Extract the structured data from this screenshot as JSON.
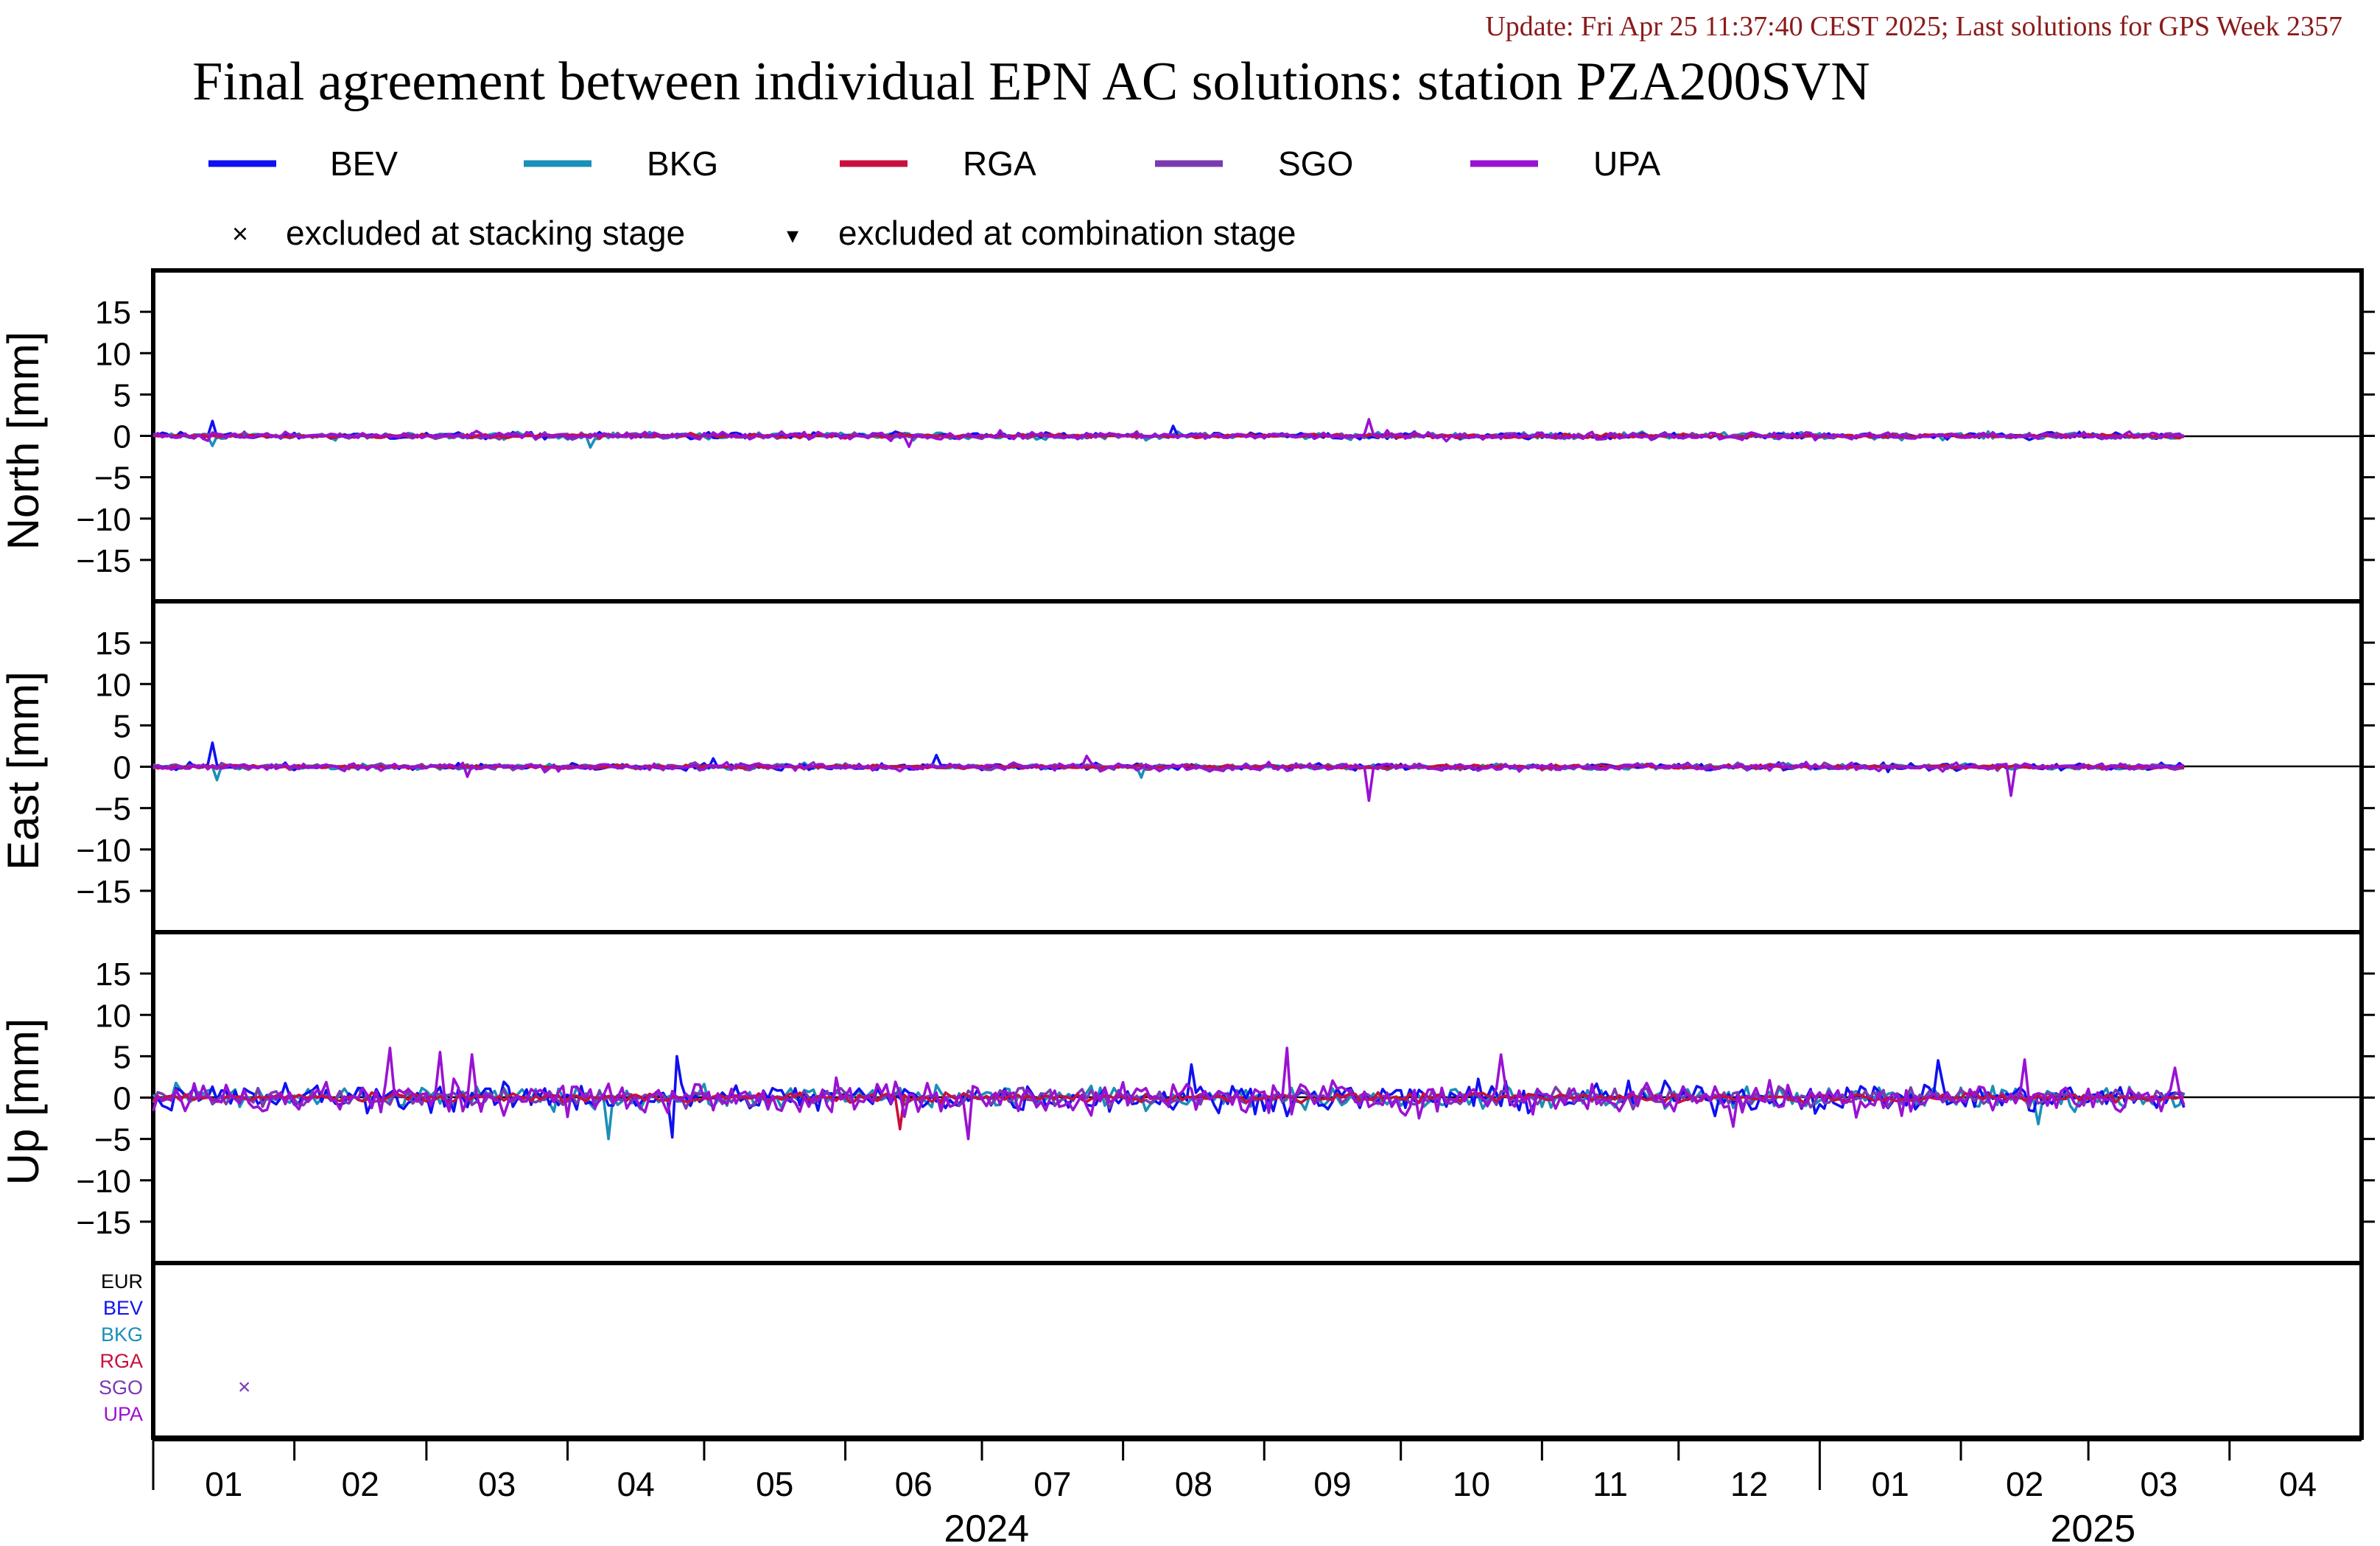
{
  "page": {
    "update_line": "Update: Fri Apr 25 11:37:40 CEST 2025; Last solutions for GPS Week 2357",
    "title": "Final agreement between individual EPN AC solutions: station PZA200SVN"
  },
  "colors": {
    "BEV": "#1010f0",
    "BKG": "#1a8fb8",
    "RGA": "#c8103c",
    "SGO": "#7a3ab0",
    "UPA": "#9a12d2",
    "EUR": "#000000",
    "update_text": "#8b1a1a"
  },
  "legend": {
    "series": [
      "BEV",
      "BKG",
      "RGA",
      "SGO",
      "UPA"
    ],
    "markers": [
      {
        "symbol": "×",
        "label": "excluded at stacking stage"
      },
      {
        "symbol": "▾",
        "label": "excluded at combination stage"
      }
    ]
  },
  "chart_data": {
    "type": "line",
    "x_unit": "date",
    "x_range": [
      "2024-01-01",
      "2025-04-30"
    ],
    "month_ticks": [
      "01",
      "02",
      "03",
      "04",
      "05",
      "06",
      "07",
      "08",
      "09",
      "10",
      "11",
      "12",
      "01",
      "02",
      "03",
      "04"
    ],
    "years": [
      "2024",
      "2025"
    ],
    "last_date": "2025-03-22",
    "panels": [
      {
        "id": "north",
        "ylabel": "North [mm]",
        "ylim": [
          -20,
          20
        ],
        "yticks": [
          15,
          10,
          5,
          0,
          -5,
          -10,
          -15
        ],
        "noise_mm": {
          "BEV": 0.35,
          "BKG": 0.35,
          "RGA": 0.2,
          "SGO": 0.3,
          "UPA": 0.4
        },
        "spikes": [
          {
            "series": "BEV",
            "date": "2024-01-14",
            "value": 1.8
          },
          {
            "series": "BKG",
            "date": "2024-01-14",
            "value": -1.2
          },
          {
            "series": "BKG",
            "date": "2024-04-06",
            "value": -1.4
          },
          {
            "series": "BEV",
            "date": "2024-08-12",
            "value": 1.2
          },
          {
            "series": "UPA",
            "date": "2024-09-24",
            "value": 2.0
          },
          {
            "series": "UPA",
            "date": "2024-06-15",
            "value": -1.3
          }
        ]
      },
      {
        "id": "east",
        "ylabel": "East [mm]",
        "ylim": [
          -20,
          20
        ],
        "yticks": [
          15,
          10,
          5,
          0,
          -5,
          -10,
          -15
        ],
        "noise_mm": {
          "BEV": 0.35,
          "BKG": 0.3,
          "RGA": 0.2,
          "SGO": 0.3,
          "UPA": 0.4
        },
        "spikes": [
          {
            "series": "BEV",
            "date": "2024-01-14",
            "value": 2.9
          },
          {
            "series": "BKG",
            "date": "2024-01-15",
            "value": -1.6
          },
          {
            "series": "UPA",
            "date": "2024-03-10",
            "value": -1.2
          },
          {
            "series": "BEV",
            "date": "2024-06-21",
            "value": 1.4
          },
          {
            "series": "UPA",
            "date": "2024-07-24",
            "value": 1.3
          },
          {
            "series": "UPA",
            "date": "2024-09-24",
            "value": -4.1
          },
          {
            "series": "BKG",
            "date": "2024-08-05",
            "value": -1.3
          },
          {
            "series": "UPA",
            "date": "2025-02-12",
            "value": -3.5
          },
          {
            "series": "BEV",
            "date": "2024-05-03",
            "value": 1.0
          }
        ]
      },
      {
        "id": "up",
        "ylabel": "Up [mm]",
        "ylim": [
          -20,
          20
        ],
        "yticks": [
          15,
          10,
          5,
          0,
          -5,
          -10,
          -15
        ],
        "noise_mm": {
          "BEV": 1.4,
          "BKG": 1.1,
          "RGA": 0.45,
          "SGO": 0.9,
          "UPA": 1.7
        },
        "spikes": [
          {
            "series": "UPA",
            "date": "2024-02-22",
            "value": 6.0
          },
          {
            "series": "UPA",
            "date": "2024-03-04",
            "value": 5.5
          },
          {
            "series": "UPA",
            "date": "2024-03-11",
            "value": 5.2
          },
          {
            "series": "BEV",
            "date": "2024-04-25",
            "value": 5.0
          },
          {
            "series": "BEV",
            "date": "2024-04-24",
            "value": -4.8
          },
          {
            "series": "BKG",
            "date": "2024-04-10",
            "value": -5.0
          },
          {
            "series": "UPA",
            "date": "2024-06-28",
            "value": -5.0
          },
          {
            "series": "UPA",
            "date": "2024-09-06",
            "value": 6.0
          },
          {
            "series": "UPA",
            "date": "2024-10-23",
            "value": 5.2
          },
          {
            "series": "BEV",
            "date": "2024-08-16",
            "value": 4.0
          },
          {
            "series": "RGA",
            "date": "2024-06-13",
            "value": -3.8
          },
          {
            "series": "BEV",
            "date": "2025-01-27",
            "value": 4.5
          },
          {
            "series": "UPA",
            "date": "2025-02-15",
            "value": 4.6
          },
          {
            "series": "UPA",
            "date": "2025-03-20",
            "value": 3.6
          },
          {
            "series": "UPA",
            "date": "2024-12-13",
            "value": -3.5
          },
          {
            "series": "BKG",
            "date": "2025-02-18",
            "value": -3.2
          }
        ]
      }
    ],
    "exclusion_panel": {
      "rows": [
        "EUR",
        "BEV",
        "BKG",
        "RGA",
        "SGO",
        "UPA"
      ],
      "marks": [
        {
          "row": "SGO",
          "date": "2024-01-21",
          "symbol": "×"
        }
      ]
    }
  }
}
